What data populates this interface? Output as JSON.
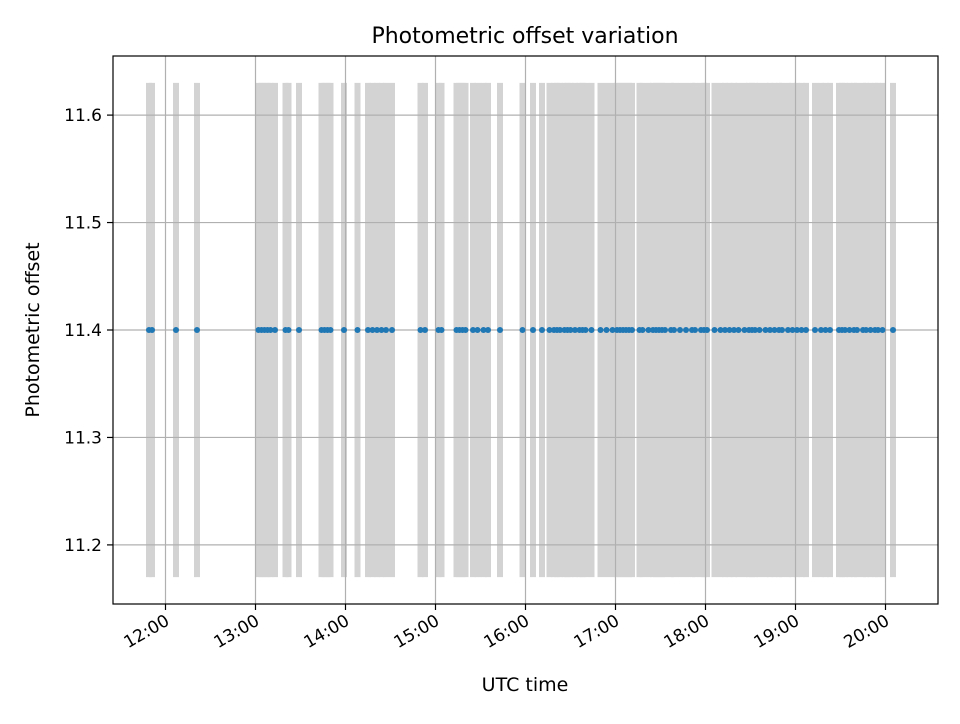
{
  "chart_data": {
    "type": "scatter",
    "title": "Photometric offset variation",
    "xlabel": "UTC time",
    "ylabel": "Photometric offset",
    "x_tick_labels": [
      "12:00",
      "13:00",
      "14:00",
      "15:00",
      "16:00",
      "17:00",
      "18:00",
      "19:00",
      "20:00"
    ],
    "y_tick_labels": [
      "11.2",
      "11.3",
      "11.4",
      "11.5",
      "11.6"
    ],
    "y_ticks": [
      11.2,
      11.3,
      11.4,
      11.5,
      11.6
    ],
    "xlim": [
      "11:25",
      "20:35"
    ],
    "ylim": [
      11.145,
      11.655
    ],
    "grid": true,
    "series": [
      {
        "color": "#1f77b4",
        "marker": "circle",
        "x": [
          "11:49",
          "11:51",
          "12:07",
          "12:21",
          "13:02",
          "13:04",
          "13:06",
          "13:08",
          "13:10",
          "13:13",
          "13:20",
          "13:22",
          "13:29",
          "13:44",
          "13:46",
          "13:48",
          "13:50",
          "13:59",
          "14:08",
          "14:15",
          "14:18",
          "14:21",
          "14:24",
          "14:27",
          "14:31",
          "14:50",
          "14:53",
          "15:02",
          "15:04",
          "15:14",
          "15:16",
          "15:18",
          "15:20",
          "15:25",
          "15:28",
          "15:32",
          "15:35",
          "15:43",
          "15:58",
          "16:05",
          "16:11",
          "16:16",
          "16:19",
          "16:21",
          "16:23",
          "16:26",
          "16:28",
          "16:30",
          "16:33",
          "16:36",
          "16:38",
          "16:40",
          "16:44",
          "16:50",
          "16:54",
          "16:58",
          "17:01",
          "17:03",
          "17:05",
          "17:07",
          "17:09",
          "17:11",
          "17:16",
          "17:18",
          "17:22",
          "17:25",
          "17:27",
          "17:29",
          "17:31",
          "17:33",
          "17:37",
          "17:39",
          "17:43",
          "17:47",
          "17:51",
          "17:53",
          "17:57",
          "17:59",
          "18:01",
          "18:06",
          "18:10",
          "18:13",
          "18:16",
          "18:19",
          "18:22",
          "18:26",
          "18:29",
          "18:31",
          "18:33",
          "18:36",
          "18:40",
          "18:43",
          "18:46",
          "18:49",
          "18:51",
          "18:55",
          "18:58",
          "19:01",
          "19:04",
          "19:07",
          "19:13",
          "19:17",
          "19:20",
          "19:23",
          "19:29",
          "19:31",
          "19:33",
          "19:36",
          "19:39",
          "19:41",
          "19:45",
          "19:47",
          "19:50",
          "19:53",
          "19:55",
          "19:58",
          "20:05"
        ],
        "y": [
          11.4,
          11.4,
          11.4,
          11.4,
          11.4,
          11.4,
          11.4,
          11.4,
          11.4,
          11.4,
          11.4,
          11.4,
          11.4,
          11.4,
          11.4,
          11.4,
          11.4,
          11.4,
          11.4,
          11.4,
          11.4,
          11.4,
          11.4,
          11.4,
          11.4,
          11.4,
          11.4,
          11.4,
          11.4,
          11.4,
          11.4,
          11.4,
          11.4,
          11.4,
          11.4,
          11.4,
          11.4,
          11.4,
          11.4,
          11.4,
          11.4,
          11.4,
          11.4,
          11.4,
          11.4,
          11.4,
          11.4,
          11.4,
          11.4,
          11.4,
          11.4,
          11.4,
          11.4,
          11.4,
          11.4,
          11.4,
          11.4,
          11.4,
          11.4,
          11.4,
          11.4,
          11.4,
          11.4,
          11.4,
          11.4,
          11.4,
          11.4,
          11.4,
          11.4,
          11.4,
          11.4,
          11.4,
          11.4,
          11.4,
          11.4,
          11.4,
          11.4,
          11.4,
          11.4,
          11.4,
          11.4,
          11.4,
          11.4,
          11.4,
          11.4,
          11.4,
          11.4,
          11.4,
          11.4,
          11.4,
          11.4,
          11.4,
          11.4,
          11.4,
          11.4,
          11.4,
          11.4,
          11.4,
          11.4,
          11.4,
          11.4,
          11.4,
          11.4,
          11.4,
          11.4,
          11.4,
          11.4,
          11.4,
          11.4,
          11.4,
          11.4,
          11.4,
          11.4,
          11.4,
          11.4,
          11.4,
          11.4
        ]
      }
    ],
    "error_bars": {
      "color": "#d3d3d3",
      "y_low": 11.17,
      "y_high": 11.63
    }
  }
}
